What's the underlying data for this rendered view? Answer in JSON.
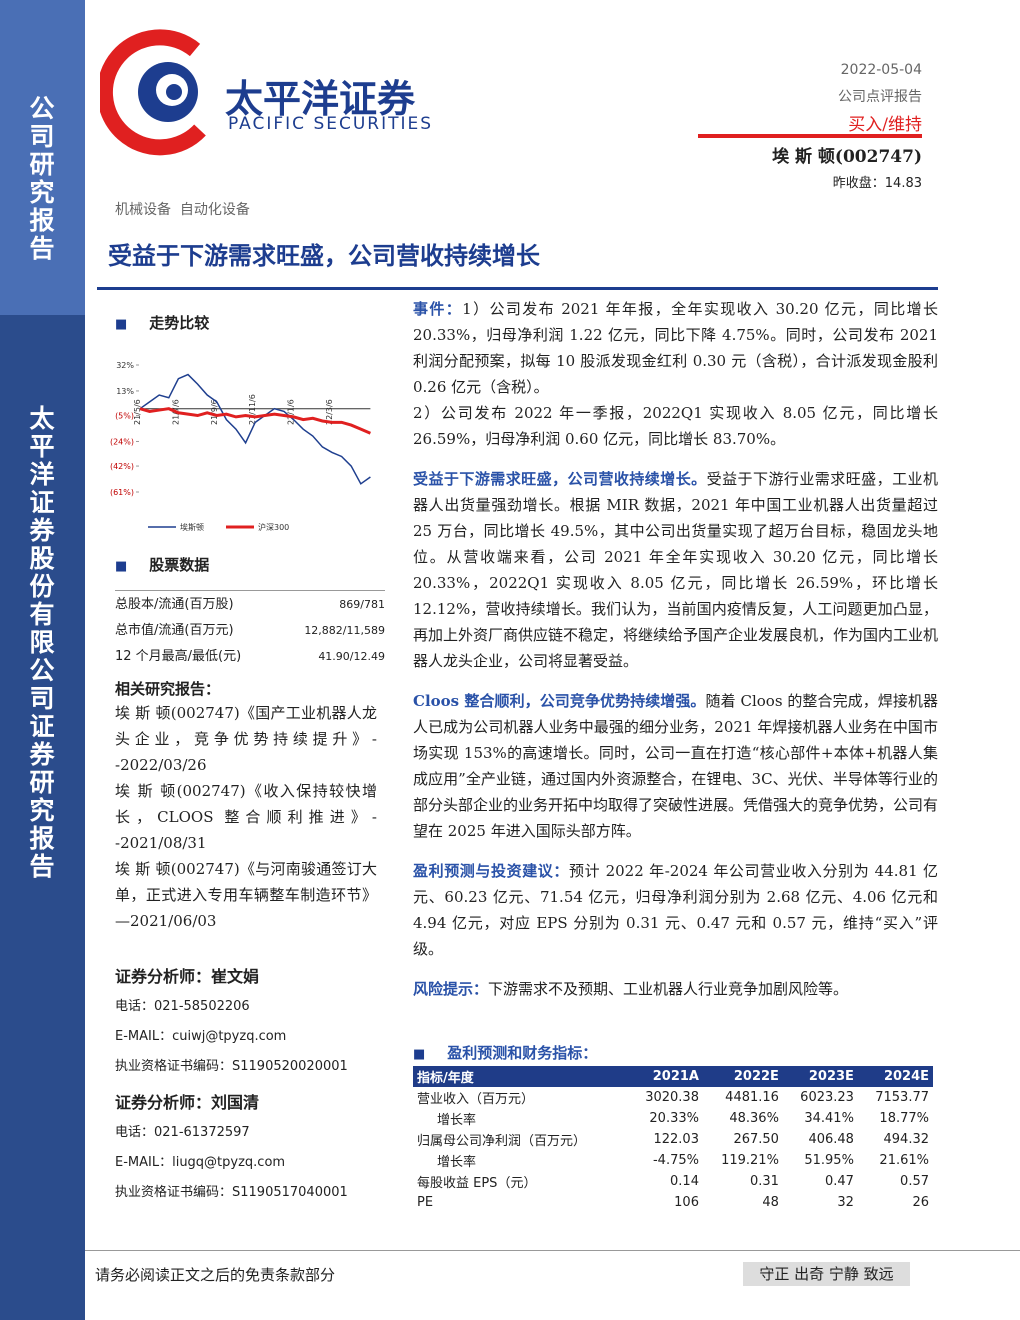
{
  "sidebar": {
    "top": "公司研究报告",
    "bottom": "太平洋证券股份有限公司证券研究报告"
  },
  "header": {
    "logo_cn": "太平洋证券",
    "logo_en": "PACIFIC SECURITIES",
    "date": "2022-05-04",
    "report_type": "公司点评报告",
    "rating": "买入/维持",
    "company": "埃 斯 顿(002747)",
    "close_price": "昨收盘：14.83",
    "industry": "机械设备  自动化设备",
    "title": "受益于下游需求旺盛，公司营收持续增长"
  },
  "chart_data": {
    "type": "line",
    "title": "走势比较",
    "categories": [
      "21/5/6",
      null,
      null,
      null,
      "21/7/6",
      null,
      null,
      null,
      "21/9/6",
      null,
      null,
      null,
      "21/11/6",
      null,
      null,
      null,
      "22/1/6",
      null,
      null,
      null,
      "22/3/6",
      null,
      null,
      null,
      null
    ],
    "series": [
      {
        "name": "埃斯顿",
        "color": "#1f3f8f",
        "values": [
          0,
          5,
          10,
          8,
          22,
          25,
          18,
          10,
          5,
          -8,
          -15,
          -25,
          -10,
          -5,
          0,
          -2,
          -8,
          -15,
          -20,
          -28,
          -32,
          -35,
          -42,
          -55,
          -50
        ]
      },
      {
        "name": "沪深300",
        "color": "#e02020",
        "values": [
          0,
          -2,
          -1,
          0,
          -3,
          -4,
          -5,
          -3,
          -5,
          -4,
          -6,
          -5,
          -6,
          -5,
          -4,
          -5,
          -6,
          -8,
          -7,
          -9,
          -10,
          -10,
          -12,
          -15,
          -18
        ]
      }
    ],
    "ylim": [
      -61,
      32
    ],
    "yticks": [
      {
        "value": 32,
        "label": "32%"
      },
      {
        "value": 13,
        "label": "13%"
      },
      {
        "value": -5,
        "label": "(5%)"
      },
      {
        "value": -24,
        "label": "(24%)"
      },
      {
        "value": -42,
        "label": "(42%)"
      },
      {
        "value": -61,
        "label": "(61%)"
      }
    ]
  },
  "stock_data": {
    "title": "股票数据",
    "rows": [
      [
        "总股本/流通(百万股)",
        "869/781"
      ],
      [
        "总市值/流通(百万元)",
        "12,882/11,589"
      ],
      [
        "12 个月最高/最低(元)",
        "41.90/12.49"
      ]
    ]
  },
  "related": {
    "title": "相关研究报告：",
    "items": [
      "埃 斯 顿(002747)《国产工业机器人龙头企业，竞争优势持续提升》--2022/03/26",
      "埃 斯 顿(002747)《收入保持较快增长，CLOOS 整合顺利推进》--2021/08/31",
      "埃 斯 顿(002747)《与河南骏通签订大单，正式进入专用车辆整车制造环节》—2021/06/03"
    ]
  },
  "analysts": [
    {
      "title": "证券分析师：崔文娟",
      "phone": "电话：021-58502206",
      "email": "E-MAIL：cuiwj@tpyzq.com",
      "license": "执业资格证书编码：S1190520020001"
    },
    {
      "title": "证券分析师：刘国清",
      "phone": "电话：021-61372597",
      "email": "E-MAIL：liugq@tpyzq.com",
      "license": "执业资格证书编码：S1190517040001"
    }
  ],
  "body": [
    {
      "lead": "事件：",
      "text": "1）公司发布 2021 年年报，全年实现收入 30.20 亿元，同比增长 20.33%，归母净利润 1.22 亿元，同比下降 4.75%。同时，公司发布 2021 利润分配预案，拟每 10 股派发现金红利 0.30 元（含税），合计派发现金股利 0.26 亿元（含税）。"
    },
    {
      "text": "2）公司发布 2022 年一季报，2022Q1 实现收入 8.05 亿元，同比增长 26.59%，归母净利润 0.60 亿元，同比增长 83.70%。"
    },
    {
      "lead": "受益于下游需求旺盛，公司营收持续增长。",
      "text": "受益于下游行业需求旺盛，工业机器人出货量强劲增长。根据 MIR 数据，2021 年中国工业机器人出货量超过 25 万台，同比增长 49.5%，其中公司出货量实现了超万台目标，稳固龙头地位。从营收端来看，公司 2021 年全年实现收入 30.20 亿元，同比增长 20.33%，2022Q1 实现收入 8.05 亿元，同比增长 26.59%，环比增长 12.12%，营收持续增长。我们认为，当前国内疫情反复，人工问题更加凸显，再加上外资厂商供应链不稳定，将继续给予国产企业发展良机，作为国内工业机器人龙头企业，公司将显著受益。"
    },
    {
      "lead": "Cloos 整合顺利，公司竞争优势持续增强。",
      "text": "随着 Cloos 的整合完成，焊接机器人已成为公司机器人业务中最强的细分业务，2021 年焊接机器人业务在中国市场实现 153%的高速增长。同时，公司一直在打造“核心部件+本体+机器人集成应用”全产业链，通过国内外资源整合，在锂电、3C、光伏、半导体等行业的部分头部企业的业务开拓中均取得了突破性进展。凭借强大的竞争优势，公司有望在 2025 年进入国际头部方阵。"
    },
    {
      "lead": "盈利预测与投资建议：",
      "text": "预计 2022 年-2024 年公司营业收入分别为 44.81 亿元、60.23 亿元、71.54 亿元，归母净利润分别为 2.68 亿元、4.06 亿元和 4.94 亿元，对应 EPS 分别为 0.31 元、0.47 元和 0.57 元，维持“买入”评级。"
    },
    {
      "lead": "风险提示：",
      "text": "下游需求不及预期、工业机器人行业竞争加剧风险等。"
    }
  ],
  "forecast": {
    "title": "盈利预测和财务指标：",
    "header": [
      "指标/年度",
      "2021A",
      "2022E",
      "2023E",
      "2024E"
    ],
    "rows": [
      [
        "营业收入（百万元）",
        "3020.38",
        "4481.16",
        "6023.23",
        "7153.77"
      ],
      [
        "增长率",
        "20.33%",
        "48.36%",
        "34.41%",
        "18.77%"
      ],
      [
        "归属母公司净利润（百万元）",
        "122.03",
        "267.50",
        "406.48",
        "494.32"
      ],
      [
        "增长率",
        "-4.75%",
        "119.21%",
        "51.95%",
        "21.61%"
      ],
      [
        "每股收益 EPS（元）",
        "0.14",
        "0.31",
        "0.47",
        "0.57"
      ],
      [
        "PE",
        "106",
        "48",
        "32",
        "26"
      ]
    ]
  },
  "footer": {
    "disclaimer": "请务必阅读正文之后的免责条款部分",
    "motto": "守正 出奇 宁静 致远"
  }
}
